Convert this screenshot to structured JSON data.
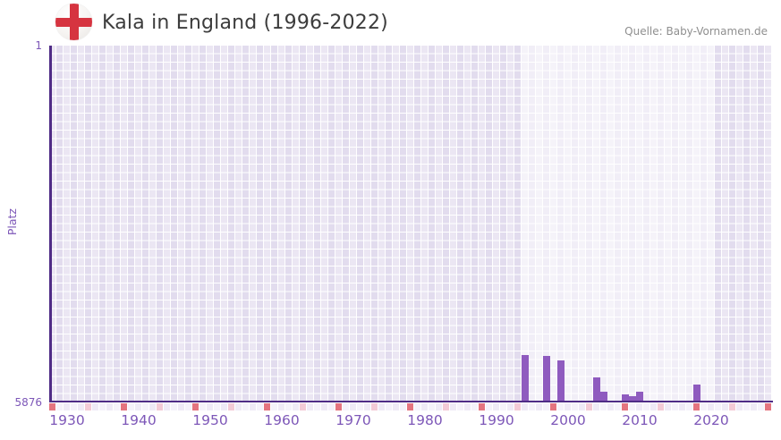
{
  "header": {
    "title": "Kala in England (1996-2022)",
    "flag_icon": "england-flag",
    "source": "Quelle: Baby-Vornamen.de"
  },
  "y_axis": {
    "title": "Platz",
    "top_label": "1",
    "bottom_label": "5876"
  },
  "chart_data": {
    "type": "bar",
    "title": "Kala in England (1996-2022)",
    "xlabel": "",
    "ylabel": "Platz",
    "y_axis_inverted": true,
    "ylim": [
      1,
      5876
    ],
    "x_domain": [
      1928,
      2028
    ],
    "x_ticks": [
      1930,
      1940,
      1950,
      1960,
      1970,
      1980,
      1990,
      2000,
      2010,
      2020
    ],
    "grid": true,
    "legend": "none",
    "highlight_band_years": [
      1994,
      2020
    ],
    "series": [
      {
        "name": "Platz",
        "points": [
          {
            "year": 1994,
            "rank": 5110
          },
          {
            "year": 1997,
            "rank": 5120
          },
          {
            "year": 1999,
            "rank": 5190
          },
          {
            "year": 2004,
            "rank": 5470
          },
          {
            "year": 2005,
            "rank": 5720
          },
          {
            "year": 2008,
            "rank": 5760
          },
          {
            "year": 2009,
            "rank": 5790
          },
          {
            "year": 2010,
            "rank": 5710
          },
          {
            "year": 2018,
            "rank": 5600
          }
        ]
      }
    ],
    "axis_marker_interval_minor": 5,
    "axis_marker_interval_major": 10
  },
  "colors": {
    "bar": "#8f5bbf",
    "axis_line": "#4f2c86",
    "tick_label": "#7d57b8",
    "grid_cell": "#e2dcee",
    "band_overlay": "rgba(255,255,255,0.52)",
    "marker_minor": "#f3cad6",
    "marker_major": "#e4747f",
    "flag_cross": "#d63440",
    "title_text": "#3c3c3c",
    "source_text": "#8f8f8f"
  }
}
